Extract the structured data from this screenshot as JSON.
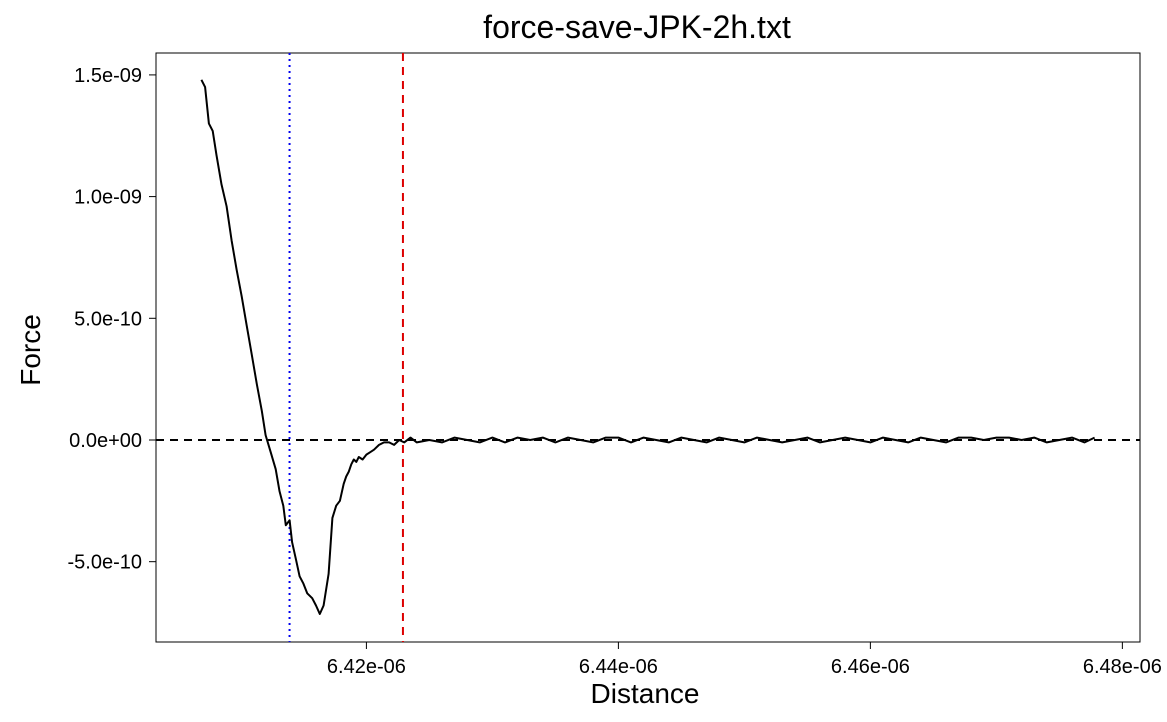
{
  "chart_data": {
    "type": "line",
    "title": "force-save-JPK-2h.txt",
    "xlabel": "Distance",
    "ylabel": "Force",
    "xlim": [
      6.4033e-06,
      6.4814e-06
    ],
    "ylim": [
      -8.3e-10,
      1.59e-09
    ],
    "x_ticks": [
      {
        "value": 6.42e-06,
        "label": "6.42e-06"
      },
      {
        "value": 6.44e-06,
        "label": "6.44e-06"
      },
      {
        "value": 6.46e-06,
        "label": "6.46e-06"
      },
      {
        "value": 6.48e-06,
        "label": "6.48e-06"
      }
    ],
    "y_ticks": [
      {
        "value": 1.5e-09,
        "label": "1.5e-09"
      },
      {
        "value": 1e-09,
        "label": "1.0e-09"
      },
      {
        "value": 5e-10,
        "label": "5.0e-10"
      },
      {
        "value": 0,
        "label": "0.0e+00"
      },
      {
        "value": -5e-10,
        "label": "-5.0e-10"
      }
    ],
    "grid": false,
    "reference_lines": [
      {
        "orientation": "horizontal",
        "value": 0,
        "style": "dashed",
        "color": "#000000"
      },
      {
        "orientation": "vertical",
        "value": 6.4139e-06,
        "style": "dotted",
        "color": "#0000ee"
      },
      {
        "orientation": "vertical",
        "value": 6.4229e-06,
        "style": "dashed",
        "color": "#dd0000"
      }
    ],
    "series": [
      {
        "color": "#000000",
        "x": [
          6.4069e-06,
          6.4072e-06,
          6.4075e-06,
          6.4078e-06,
          6.4081e-06,
          6.4085e-06,
          6.4089e-06,
          6.4093e-06,
          6.4097e-06,
          6.4101e-06,
          6.4105e-06,
          6.4109e-06,
          6.4113e-06,
          6.4117e-06,
          6.412e-06,
          6.4124e-06,
          6.4128e-06,
          6.4131e-06,
          6.4134e-06,
          6.4136e-06,
          6.4139e-06,
          6.4141e-06,
          6.4144e-06,
          6.4147e-06,
          6.415e-06,
          6.4153e-06,
          6.4157e-06,
          6.416e-06,
          6.4163e-06,
          6.4166e-06,
          6.417e-06,
          6.4173e-06,
          6.4176e-06,
          6.4179e-06,
          6.4182e-06,
          6.4184e-06,
          6.4186e-06,
          6.4188e-06,
          6.419e-06,
          6.4192e-06,
          6.4194e-06,
          6.4197e-06,
          6.42e-06,
          6.4203e-06,
          6.4206e-06,
          6.421e-06,
          6.4214e-06,
          6.4218e-06,
          6.4222e-06,
          6.4226e-06,
          6.423e-06,
          6.4235e-06,
          6.424e-06,
          6.425e-06,
          6.426e-06,
          6.427e-06,
          6.428e-06,
          6.429e-06,
          6.43e-06,
          6.431e-06,
          6.432e-06,
          6.433e-06,
          6.434e-06,
          6.435e-06,
          6.436e-06,
          6.437e-06,
          6.438e-06,
          6.439e-06,
          6.44e-06,
          6.441e-06,
          6.442e-06,
          6.443e-06,
          6.444e-06,
          6.445e-06,
          6.446e-06,
          6.447e-06,
          6.448e-06,
          6.449e-06,
          6.45e-06,
          6.451e-06,
          6.452e-06,
          6.453e-06,
          6.454e-06,
          6.455e-06,
          6.456e-06,
          6.457e-06,
          6.458e-06,
          6.459e-06,
          6.46e-06,
          6.461e-06,
          6.462e-06,
          6.463e-06,
          6.464e-06,
          6.465e-06,
          6.466e-06,
          6.467e-06,
          6.468e-06,
          6.469e-06,
          6.47e-06,
          6.471e-06,
          6.472e-06,
          6.473e-06,
          6.474e-06,
          6.475e-06,
          6.476e-06,
          6.477e-06,
          6.4778e-06
        ],
        "y": [
          1.48e-09,
          1.45e-09,
          1.3e-09,
          1.27e-09,
          1.17e-09,
          1.05e-09,
          9.6e-10,
          8.2e-10,
          7e-10,
          5.9e-10,
          4.7e-10,
          3.5e-10,
          2.3e-10,
          1.2e-10,
          2e-11,
          -5e-11,
          -1.2e-10,
          -2.1e-10,
          -2.7e-10,
          -3.5e-10,
          -3.3e-10,
          -4.2e-10,
          -4.9e-10,
          -5.6e-10,
          -5.9e-10,
          -6.3e-10,
          -6.5e-10,
          -6.8e-10,
          -7.15e-10,
          -6.8e-10,
          -5.5e-10,
          -3.2e-10,
          -2.7e-10,
          -2.5e-10,
          -1.8e-10,
          -1.5e-10,
          -1.3e-10,
          -1e-10,
          -8e-11,
          -9e-11,
          -7e-11,
          -8e-11,
          -6e-11,
          -5e-11,
          -4e-11,
          -2e-11,
          -1e-11,
          -1e-11,
          -2e-11,
          0,
          -1e-11,
          1e-11,
          -1e-11,
          0,
          -1e-11,
          1e-11,
          0,
          -1e-11,
          1e-11,
          -1e-11,
          1e-11,
          0,
          1e-11,
          -1e-11,
          1e-11,
          0,
          -1e-11,
          1e-11,
          1e-11,
          -1e-11,
          1e-11,
          0,
          -1e-11,
          1e-11,
          0,
          -1e-11,
          1e-11,
          0,
          -1e-11,
          1e-11,
          0,
          -1e-11,
          0,
          1e-11,
          -1e-11,
          0,
          1e-11,
          0,
          -1e-11,
          1e-11,
          0,
          -1e-11,
          1e-11,
          0,
          -1e-11,
          1e-11,
          1e-11,
          0,
          1e-11,
          1e-11,
          0,
          1e-11,
          -1e-11,
          0,
          1e-11,
          -1e-11,
          1e-11
        ]
      }
    ]
  }
}
